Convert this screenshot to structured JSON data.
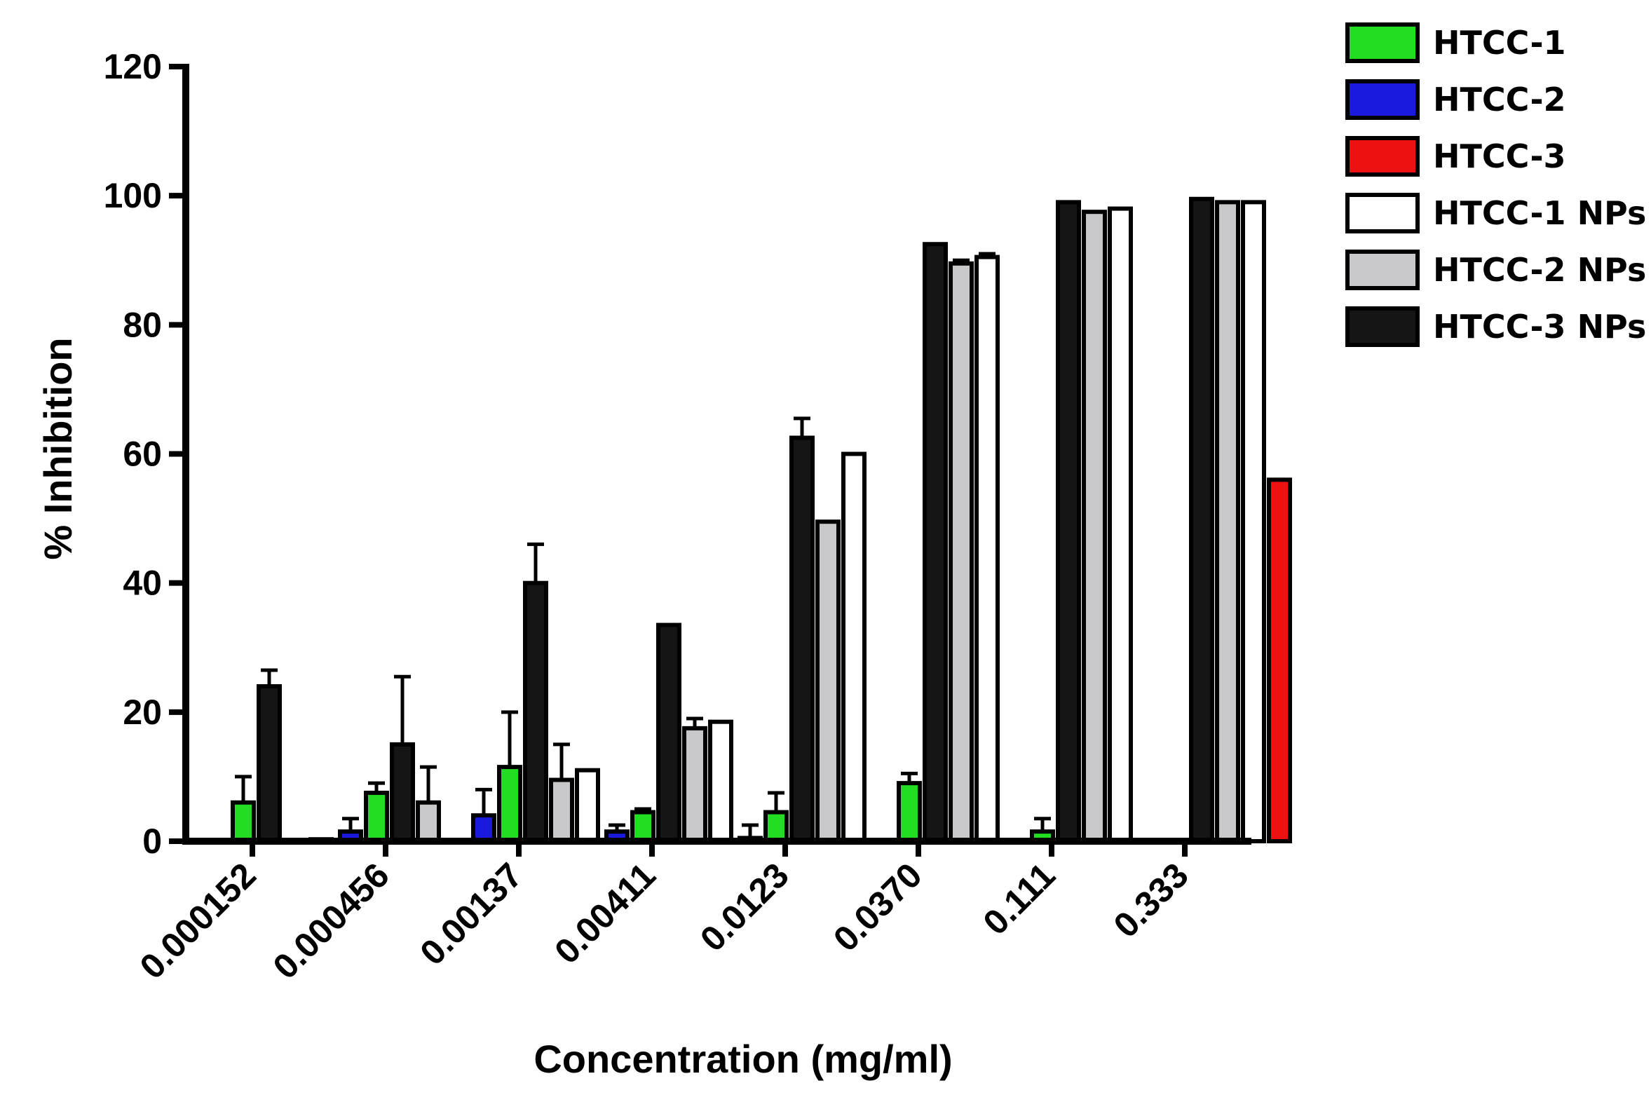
{
  "chart_data": {
    "type": "bar",
    "title": "",
    "xlabel": "Concentration (mg/ml)",
    "ylabel": "% Inhibition",
    "ylim": [
      0,
      120
    ],
    "yticks": [
      "0",
      "20",
      "40",
      "60",
      "80",
      "100",
      "120"
    ],
    "categories": [
      "0.000152",
      "0.000456",
      "0.00137",
      "0.00411",
      "0.0123",
      "0.0370",
      "0.111",
      "0.333"
    ],
    "legend_position": "top-right",
    "series": [
      {
        "name": "HTCC-1",
        "color": "#22dd22",
        "values": [
          6,
          7.5,
          11.5,
          4.5,
          4.5,
          9,
          1.5,
          0
        ],
        "errors": [
          4,
          1.5,
          8.5,
          0.5,
          3,
          1.5,
          2,
          0
        ]
      },
      {
        "name": "HTCC-2",
        "color": "#1a1adf",
        "values": [
          0,
          1.5,
          4,
          1.5,
          0.5,
          0,
          0,
          0
        ],
        "errors": [
          0,
          2,
          4,
          1,
          2,
          0,
          0,
          0
        ]
      },
      {
        "name": "HTCC-3",
        "color": "#ee1111",
        "values": [
          0,
          0,
          0,
          0,
          0,
          0,
          0,
          56
        ],
        "errors": [
          0,
          0,
          0,
          0,
          0,
          0,
          0,
          0
        ]
      },
      {
        "name": "HTCC-1 NPs",
        "color": "#ffffff",
        "values": [
          0.3,
          0,
          11,
          18.5,
          60,
          90.5,
          98,
          99
        ],
        "errors": [
          0,
          0,
          0,
          0,
          0,
          0.5,
          0,
          0
        ]
      },
      {
        "name": "HTCC-2 NPs",
        "color": "#c8c8ca",
        "values": [
          0,
          6,
          9.5,
          17.5,
          49.5,
          89.5,
          97.5,
          99
        ],
        "errors": [
          0,
          5.5,
          5.5,
          1.5,
          0,
          0.5,
          0,
          0
        ]
      },
      {
        "name": "HTCC-3 NPs",
        "color": "#151515",
        "values": [
          24,
          15,
          40,
          33.5,
          62.5,
          92.5,
          99,
          99.5
        ],
        "errors": [
          2.5,
          10.5,
          6,
          0,
          3,
          0,
          0,
          0
        ]
      }
    ]
  }
}
